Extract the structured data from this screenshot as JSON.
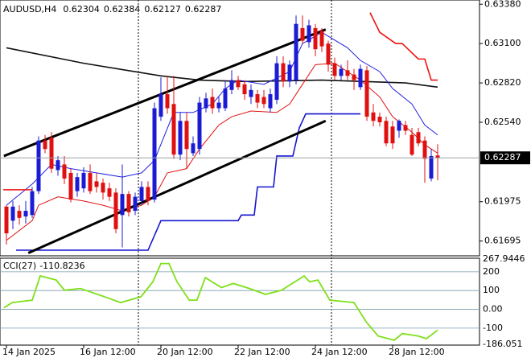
{
  "chart_data": {
    "type": "candlestick",
    "symbol": "AUDUSD,H4",
    "categories": [
      "14 Jan 2025",
      null,
      null,
      null,
      null,
      null,
      null,
      null,
      null,
      null,
      null,
      null,
      "16 Jan 12:00",
      null,
      null,
      null,
      null,
      null,
      null,
      null,
      null,
      null,
      null,
      null,
      "20 Jan 12:00",
      null,
      null,
      null,
      null,
      null,
      null,
      null,
      null,
      null,
      null,
      null,
      "22 Jan 12:00",
      null,
      null,
      null,
      null,
      null,
      null,
      null,
      null,
      null,
      null,
      null,
      "24 Jan 12:00",
      null,
      null,
      null,
      null,
      null,
      null,
      null,
      null,
      null,
      null,
      null,
      "28 Jan 12:00",
      null,
      null,
      null,
      null,
      null,
      null,
      null
    ],
    "open": [
      0.6194,
      0.6184,
      0.6191,
      0.6187,
      0.6188,
      0.6205,
      0.6241,
      0.6243,
      0.622,
      0.6224,
      0.6218,
      0.6205,
      0.6207,
      0.6218,
      0.6212,
      0.6211,
      0.6207,
      0.6204,
      0.6188,
      0.6203,
      0.6191,
      0.6198,
      0.6208,
      0.6199,
      0.6258,
      0.6274,
      0.6267,
      0.6231,
      0.6255,
      0.6232,
      0.6235,
      0.6264,
      0.6272,
      0.6264,
      0.6264,
      0.6277,
      0.6284,
      0.6281,
      0.6272,
      0.6274,
      0.6272,
      0.6264,
      0.627,
      0.6296,
      0.6283,
      0.6284,
      0.6321,
      0.6311,
      0.6321,
      0.6319,
      0.631,
      0.6296,
      0.6287,
      0.6291,
      0.6288,
      0.6279,
      0.6291,
      0.6261,
      0.6258,
      0.6255,
      0.6251,
      0.6248,
      0.6252,
      0.6245,
      0.6247,
      0.6241,
      0.6214,
      0.62304
    ],
    "high": [
      0.6195,
      0.6198,
      0.6195,
      0.6198,
      0.6208,
      0.6244,
      0.6245,
      0.6247,
      0.623,
      0.623,
      0.6221,
      0.6218,
      0.6222,
      0.6224,
      0.6218,
      0.6214,
      0.6211,
      0.6207,
      0.6224,
      0.6205,
      0.6204,
      0.6212,
      0.6212,
      0.6268,
      0.6286,
      0.6287,
      0.6287,
      0.6261,
      0.6261,
      0.6244,
      0.6272,
      0.6275,
      0.6278,
      0.6272,
      0.6284,
      0.6291,
      0.6287,
      0.6284,
      0.6281,
      0.6277,
      0.6277,
      0.6278,
      0.6301,
      0.6301,
      0.6298,
      0.633,
      0.633,
      0.6327,
      0.6324,
      0.6321,
      0.6312,
      0.63,
      0.6295,
      0.6298,
      0.6292,
      0.6295,
      0.6294,
      0.6267,
      0.6261,
      0.6258,
      0.6255,
      0.6256,
      0.6255,
      0.625,
      0.625,
      0.6244,
      0.6235,
      0.62384
    ],
    "low": [
      0.6167,
      0.6178,
      0.6181,
      0.6182,
      0.6186,
      0.6203,
      0.6232,
      0.6218,
      0.6216,
      0.621,
      0.6197,
      0.6201,
      0.6204,
      0.6203,
      0.6204,
      0.6199,
      0.6198,
      0.6175,
      0.6165,
      0.6187,
      0.6188,
      0.6195,
      0.6195,
      0.6197,
      0.6255,
      0.626,
      0.6228,
      0.6227,
      0.6221,
      0.623,
      0.6231,
      0.6261,
      0.626,
      0.6261,
      0.6262,
      0.6274,
      0.6277,
      0.627,
      0.6267,
      0.6264,
      0.6264,
      0.6261,
      0.6267,
      0.6279,
      0.6279,
      0.6281,
      0.631,
      0.6307,
      0.6301,
      0.6304,
      0.629,
      0.6284,
      0.6284,
      0.6284,
      0.6277,
      0.6277,
      0.6255,
      0.6251,
      0.6251,
      0.6237,
      0.6235,
      0.6243,
      0.6245,
      0.623,
      0.6237,
      0.6211,
      0.6212,
      0.62127
    ],
    "close": [
      0.6175,
      0.6194,
      0.6186,
      0.6191,
      0.6205,
      0.6241,
      0.6235,
      0.6221,
      0.6227,
      0.6214,
      0.6199,
      0.6215,
      0.6218,
      0.6205,
      0.6208,
      0.6204,
      0.6201,
      0.6178,
      0.6203,
      0.619,
      0.6201,
      0.6208,
      0.6198,
      0.6264,
      0.6274,
      0.6264,
      0.6231,
      0.6255,
      0.6235,
      0.6239,
      0.6268,
      0.6271,
      0.6264,
      0.6268,
      0.6278,
      0.6284,
      0.6279,
      0.6274,
      0.6277,
      0.6268,
      0.6267,
      0.6274,
      0.6296,
      0.6283,
      0.6295,
      0.6324,
      0.6312,
      0.6323,
      0.6306,
      0.6308,
      0.6295,
      0.6287,
      0.6292,
      0.6287,
      0.6284,
      0.6292,
      0.6258,
      0.6255,
      0.6254,
      0.6239,
      0.6239,
      0.6255,
      0.6248,
      0.6231,
      0.6239,
      0.6228,
      0.623,
      0.62287
    ],
    "up_color": "#1b1bd6",
    "down_color": "#e01010",
    "ylim": [
      0.6159,
      0.6341
    ],
    "yticks": [
      {
        "value": 0.6338,
        "label": "0.63380"
      },
      {
        "value": 0.631,
        "label": "0.63100"
      },
      {
        "value": 0.6282,
        "label": "0.62820"
      },
      {
        "value": 0.6254,
        "label": "0.62540"
      },
      {
        "value": 0.61975,
        "label": "0.61975"
      },
      {
        "value": 0.61695,
        "label": "0.61695"
      }
    ],
    "overlays": [
      {
        "color": "#111111",
        "width": 1.6,
        "x": [
          0,
          12,
          24,
          30,
          37,
          49,
          62,
          67
        ],
        "values": [
          0.6307,
          0.6296,
          0.6287,
          0.6284,
          0.6283,
          0.6284,
          0.6282,
          0.6279
        ]
      },
      {
        "color": "#2020e0",
        "width": 1,
        "x": [
          0,
          4,
          7,
          10,
          14,
          18,
          21,
          23,
          26,
          29,
          32,
          34,
          36,
          40,
          44,
          46,
          49,
          53,
          55,
          58,
          60,
          63,
          65,
          67
        ],
        "values": [
          0.6195,
          0.621,
          0.6224,
          0.6221,
          0.6218,
          0.6215,
          0.6218,
          0.6227,
          0.6261,
          0.6261,
          0.6267,
          0.6278,
          0.6284,
          0.6281,
          0.629,
          0.631,
          0.6318,
          0.6307,
          0.6298,
          0.629,
          0.6278,
          0.6267,
          0.6252,
          0.6245
        ]
      },
      {
        "color": "#e01010",
        "width": 1,
        "x": [
          0,
          4,
          5,
          8,
          12,
          15,
          18,
          21,
          23,
          25,
          28,
          30,
          33,
          35,
          38,
          42,
          44,
          46,
          48,
          51,
          55,
          58,
          60,
          63,
          65,
          67
        ],
        "values": [
          0.617,
          0.6184,
          0.6195,
          0.6201,
          0.6198,
          0.6195,
          0.6191,
          0.6195,
          0.6201,
          0.6218,
          0.6221,
          0.6235,
          0.6252,
          0.6258,
          0.6262,
          0.6261,
          0.6267,
          0.6281,
          0.6295,
          0.6296,
          0.6284,
          0.6272,
          0.6258,
          0.6247,
          0.6238,
          0.6232
        ]
      },
      {
        "color": "#ee1111",
        "width": 1.6,
        "x": [
          56.5,
          58,
          60.5,
          61.5,
          64,
          65,
          66,
          67
        ],
        "values": [
          0.6332,
          0.6318,
          0.631,
          0.631,
          0.6299,
          0.6299,
          0.6284,
          0.6284
        ]
      },
      {
        "color": "#ee1111",
        "width": 1.6,
        "x": [
          -0.5,
          4
        ],
        "values": [
          0.6206,
          0.6206
        ]
      },
      {
        "color": "#1515d0",
        "width": 1.6,
        "x": [
          1.5,
          22,
          24,
          36,
          36.5,
          38.5,
          39,
          41.5,
          42,
          44.5,
          45.5,
          46.5,
          55
        ],
        "values": [
          0.6163,
          0.6163,
          0.6184,
          0.6184,
          0.6188,
          0.6188,
          0.6208,
          0.6208,
          0.623,
          0.623,
          0.625,
          0.626,
          0.626
        ]
      },
      {
        "color": "#000000",
        "width": 3,
        "x": [
          -0.4,
          49.6
        ],
        "values": [
          0.623,
          0.632
        ]
      },
      {
        "color": "#000000",
        "width": 3,
        "x": [
          3.4,
          49.6
        ],
        "values": [
          0.6161,
          0.6255
        ]
      }
    ],
    "cci": {
      "label": "CCI(27)",
      "color": "#7ee01a",
      "x": [
        -0.4,
        0.9,
        4,
        5.25,
        7.75,
        9,
        11.5,
        15.25,
        17.75,
        20.9,
        22.75,
        24,
        25.25,
        26.5,
        28.4,
        29.6,
        30.9,
        33.4,
        35.25,
        37.75,
        40.25,
        42.75,
        45.25,
        46.25,
        47.1,
        48.4,
        50.25,
        54,
        55.9,
        57.75,
        60.25,
        61.5,
        64,
        65.25,
        67
      ],
      "values": [
        9,
        36,
        49,
        178,
        156,
        102,
        111,
        67,
        36,
        67,
        147,
        244,
        244,
        147,
        49,
        49,
        169,
        116,
        138,
        111,
        80,
        102,
        156,
        178,
        147,
        156,
        49,
        36,
        -67,
        -142,
        -164,
        -129,
        -142,
        -156,
        -110.8236
      ],
      "ylim": [
        -186.051,
        267.9446
      ],
      "yticks": [
        267.9446,
        200,
        100,
        {
          "value": 0,
          "label": "0.00"
        },
        -100,
        -186.051
      ]
    }
  }
}
